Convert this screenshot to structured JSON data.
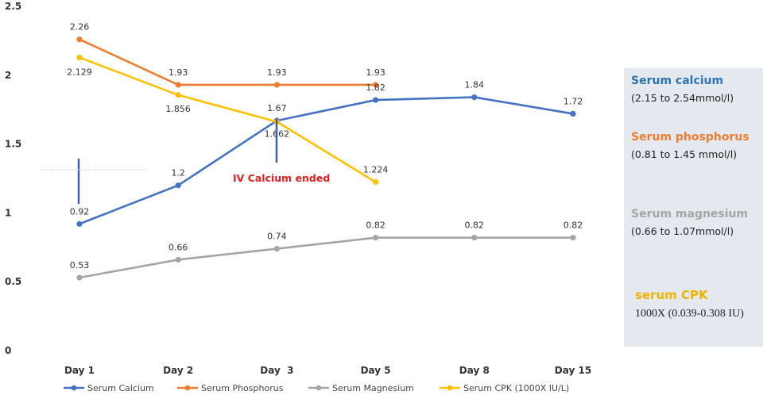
{
  "chart_data": {
    "type": "line",
    "categories": [
      "Day 1",
      "Day 2",
      "Day  3",
      "Day 5",
      "Day 8",
      "Day 15"
    ],
    "ylim": [
      0,
      2.5
    ],
    "yticks": [
      "0",
      "0.5",
      "1",
      "1.5",
      "2",
      "2.5"
    ],
    "grid": false,
    "legend_position": "bottom",
    "series": [
      {
        "name": "Serum Calcium",
        "color": "#4472c4",
        "values": [
          0.92,
          1.2,
          1.67,
          1.82,
          1.84,
          1.72
        ],
        "labels": [
          "0.92",
          "1.2",
          "1.67",
          "1.82",
          "1.84",
          "1.72"
        ]
      },
      {
        "name": "Serum Phosphorus",
        "color": "#ed7d31",
        "values": [
          2.26,
          1.93,
          1.93,
          1.93,
          null,
          null
        ],
        "labels": [
          "2.26",
          "1.93",
          "1.93",
          "1.93",
          null,
          null
        ]
      },
      {
        "name": "Serum Magnesium",
        "color": "#a5a5a5",
        "values": [
          0.53,
          0.66,
          0.74,
          0.82,
          0.82,
          0.82
        ],
        "labels": [
          "0.53",
          "0.66",
          "0.74",
          "0.82",
          "0.82",
          "0.82"
        ]
      },
      {
        "name": "Serum CPK (1000X IU/L)",
        "color": "#ffc000",
        "values": [
          2.129,
          1.856,
          1.662,
          1.224,
          null,
          null
        ],
        "labels": [
          "2.129",
          "1.856",
          "1.662",
          "1.224",
          null,
          null
        ]
      }
    ],
    "annotation": {
      "text": "IV Calcium ended",
      "color": "#e02020"
    }
  },
  "reference_panel": {
    "background": "#e4e9ef",
    "items": [
      {
        "name": "Serum calcium",
        "range": "(2.15 to 2.54mmol/l)",
        "color": "#2e74b5"
      },
      {
        "name": "Serum phosphorus",
        "range": "(0.81 to 1.45 mmol/l)",
        "color": "#ed7d31"
      },
      {
        "name": "Serum magnesium",
        "range": "(0.66 to 1.07mmol/l)",
        "color": "#a5a5a5"
      },
      {
        "name": "serum CPK",
        "range": "1000X (0.039-0.308 IU)",
        "color": "#f0b400"
      }
    ]
  }
}
